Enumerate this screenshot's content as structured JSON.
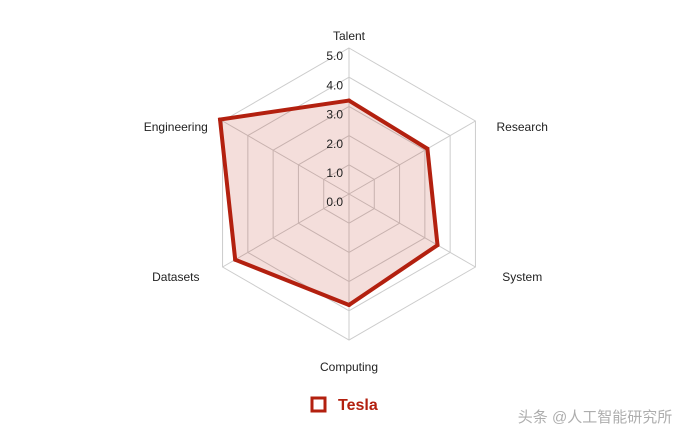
{
  "chart_data": {
    "type": "radar",
    "categories": [
      "Talent",
      "Research",
      "System",
      "Computing",
      "Datasets",
      "Engineering"
    ],
    "series": [
      {
        "name": "Tesla",
        "color": "#b3200f",
        "values": [
          3.2,
          3.1,
          3.5,
          3.8,
          4.5,
          5.1
        ]
      }
    ],
    "rlim": [
      0,
      5
    ],
    "rticks": [
      {
        "value": 0,
        "label": "0.0"
      },
      {
        "value": 1,
        "label": "1.0"
      },
      {
        "value": 2,
        "label": "2.0"
      },
      {
        "value": 3,
        "label": "3.0"
      },
      {
        "value": 4,
        "label": "4.0"
      },
      {
        "value": 5,
        "label": "5.0"
      }
    ],
    "grid": true,
    "legend": "bottom",
    "watermark": "头条 @人工智能研究所"
  }
}
